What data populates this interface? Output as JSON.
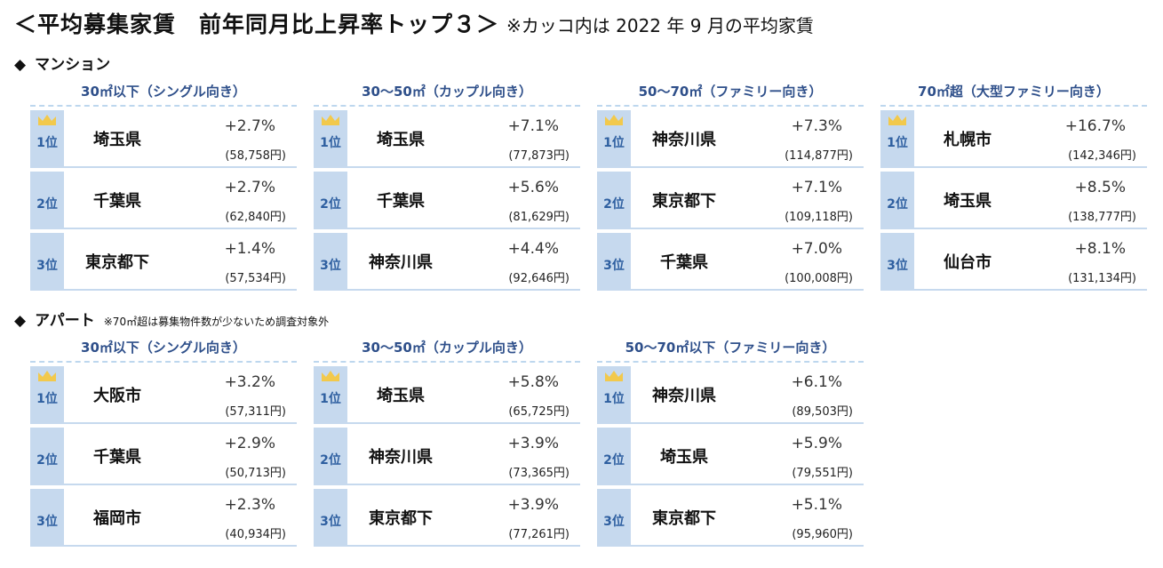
{
  "title": {
    "main": "＜平均募集家賃　前年同月比上昇率トップ３＞",
    "note": "※カッコ内は 2022 年 9 月の平均家賃"
  },
  "sections": {
    "mansion": {
      "label": "マンション",
      "note": ""
    },
    "apart": {
      "label": "アパート",
      "note": "※70㎡超は募集物件数が少ないため調査対象外"
    }
  },
  "mansion": [
    {
      "header": "30㎡以下（シングル向き）",
      "rows": [
        {
          "rank": "1位",
          "pref": "埼玉県",
          "pct": "+2.7%",
          "price": "(58,758円)"
        },
        {
          "rank": "2位",
          "pref": "千葉県",
          "pct": "+2.7%",
          "price": "(62,840円)"
        },
        {
          "rank": "3位",
          "pref": "東京都下",
          "pct": "+1.4%",
          "price": "(57,534円)"
        }
      ]
    },
    {
      "header": "30～50㎡（カップル向き）",
      "rows": [
        {
          "rank": "1位",
          "pref": "埼玉県",
          "pct": "+7.1%",
          "price": "(77,873円)"
        },
        {
          "rank": "2位",
          "pref": "千葉県",
          "pct": "+5.6%",
          "price": "(81,629円)"
        },
        {
          "rank": "3位",
          "pref": "神奈川県",
          "pct": "+4.4%",
          "price": "(92,646円)"
        }
      ]
    },
    {
      "header": "50～70㎡（ファミリー向き）",
      "rows": [
        {
          "rank": "1位",
          "pref": "神奈川県",
          "pct": "+7.3%",
          "price": "(114,877円)"
        },
        {
          "rank": "2位",
          "pref": "東京都下",
          "pct": "+7.1%",
          "price": "(109,118円)"
        },
        {
          "rank": "3位",
          "pref": "千葉県",
          "pct": "+7.0%",
          "price": "(100,008円)"
        }
      ]
    },
    {
      "header": "70㎡超（大型ファミリー向き）",
      "rows": [
        {
          "rank": "1位",
          "pref": "札幌市",
          "pct": "+16.7%",
          "price": "(142,346円)"
        },
        {
          "rank": "2位",
          "pref": "埼玉県",
          "pct": "+8.5%",
          "price": "(138,777円)"
        },
        {
          "rank": "3位",
          "pref": "仙台市",
          "pct": "+8.1%",
          "price": "(131,134円)"
        }
      ]
    }
  ],
  "apart": [
    {
      "header": "30㎡以下（シングル向き）",
      "rows": [
        {
          "rank": "1位",
          "pref": "大阪市",
          "pct": "+3.2%",
          "price": "(57,311円)"
        },
        {
          "rank": "2位",
          "pref": "千葉県",
          "pct": "+2.9%",
          "price": "(50,713円)"
        },
        {
          "rank": "3位",
          "pref": "福岡市",
          "pct": "+2.3%",
          "price": "(40,934円)"
        }
      ]
    },
    {
      "header": "30～50㎡（カップル向き）",
      "rows": [
        {
          "rank": "1位",
          "pref": "埼玉県",
          "pct": "+5.8%",
          "price": "(65,725円)"
        },
        {
          "rank": "2位",
          "pref": "神奈川県",
          "pct": "+3.9%",
          "price": "(73,365円)"
        },
        {
          "rank": "3位",
          "pref": "東京都下",
          "pct": "+3.9%",
          "price": "(77,261円)"
        }
      ]
    },
    {
      "header": "50～70㎡以下（ファミリー向き）",
      "rows": [
        {
          "rank": "1位",
          "pref": "神奈川県",
          "pct": "+6.1%",
          "price": "(89,503円)"
        },
        {
          "rank": "2位",
          "pref": "埼玉県",
          "pct": "+5.9%",
          "price": "(79,551円)"
        },
        {
          "rank": "3位",
          "pref": "東京都下",
          "pct": "+5.1%",
          "price": "(95,960円)"
        }
      ]
    }
  ],
  "colors": {
    "header_text": "#2e4f8a",
    "rank_bg": "#c6d9ee",
    "crown": "#f2c94c"
  },
  "icons": {
    "crown": "crown-icon",
    "diamond": "diamond-icon"
  }
}
